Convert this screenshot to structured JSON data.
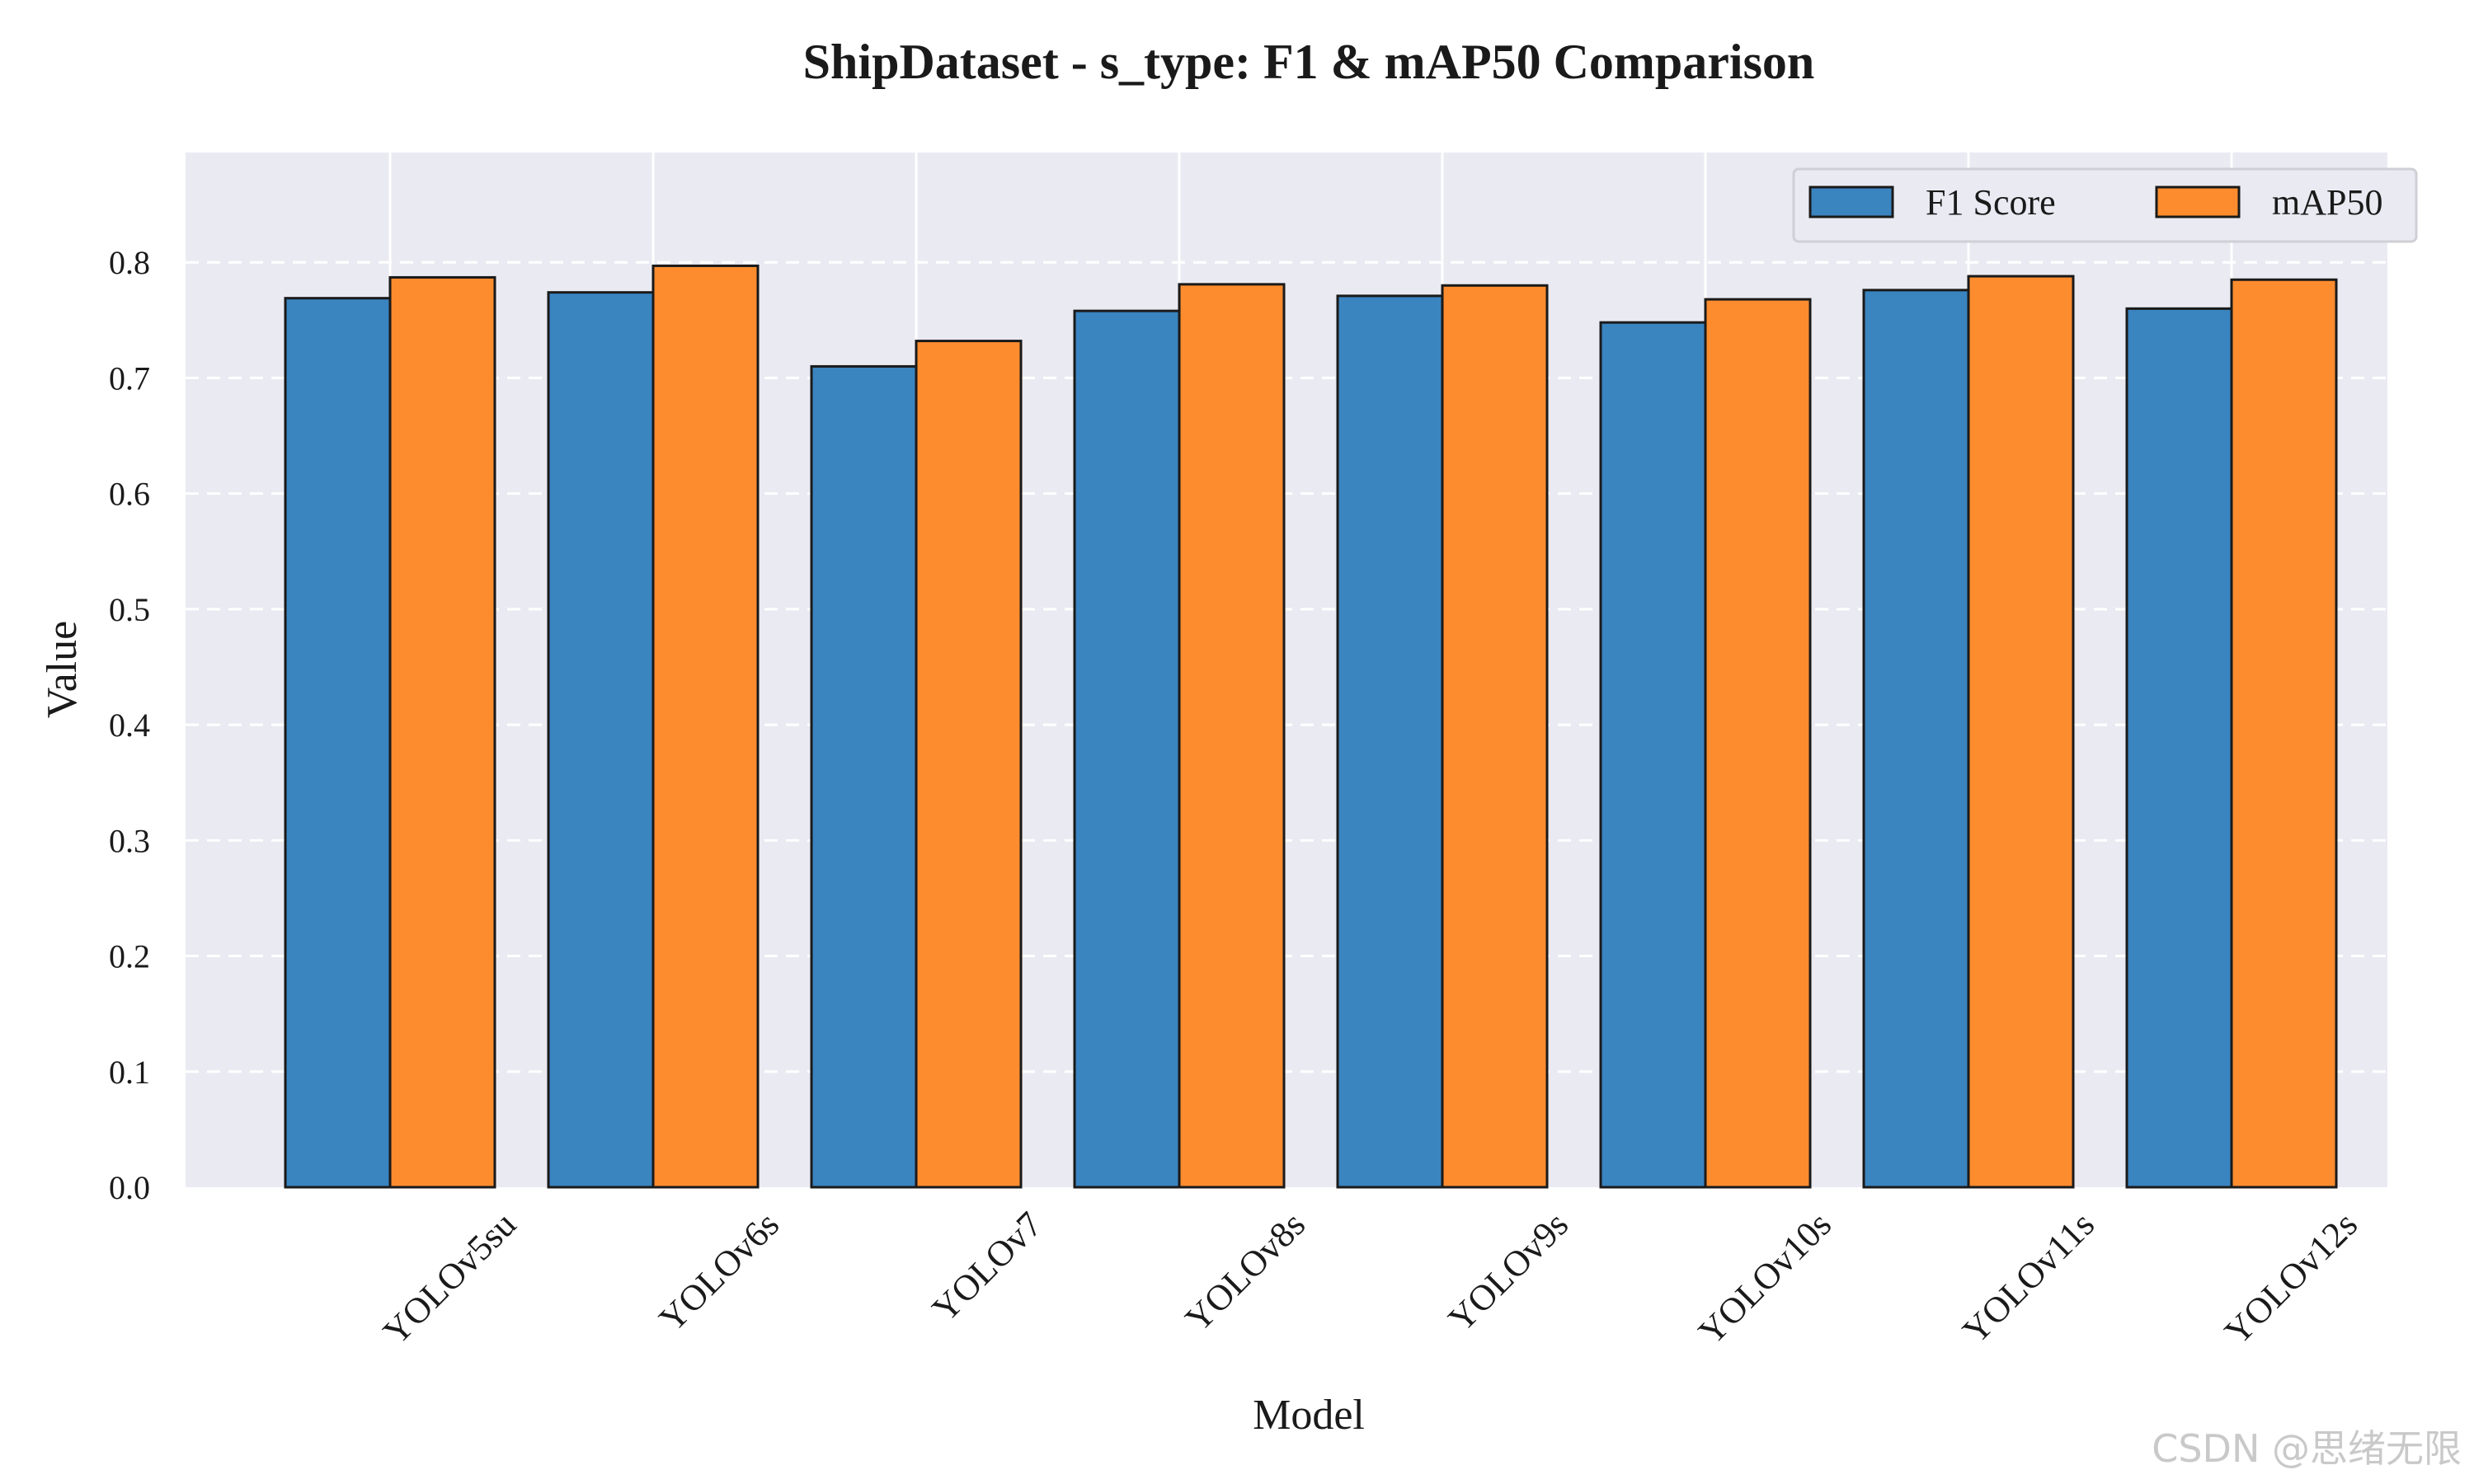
{
  "chart_data": {
    "type": "bar",
    "title": "ShipDataset - s_type: F1 & mAP50 Comparison",
    "xlabel": "Model",
    "ylabel": "Value",
    "ylim": [
      0,
      0.895
    ],
    "yticks": [
      "0.0",
      "0.1",
      "0.2",
      "0.3",
      "0.4",
      "0.5",
      "0.6",
      "0.7",
      "0.8"
    ],
    "categories": [
      "YOLOv5su",
      "YOLOv6s",
      "YOLOv7",
      "YOLOv8s",
      "YOLOv9s",
      "YOLOv10s",
      "YOLOv11s",
      "YOLOv12s"
    ],
    "series": [
      {
        "name": "F1 Score",
        "color": "#3a84c0",
        "values": [
          0.769,
          0.774,
          0.71,
          0.758,
          0.771,
          0.748,
          0.776,
          0.76
        ]
      },
      {
        "name": "mAP50",
        "color": "#fc8c2e",
        "values": [
          0.787,
          0.797,
          0.732,
          0.781,
          0.78,
          0.768,
          0.788,
          0.785
        ]
      }
    ],
    "legend_position": "top-right",
    "grid": true,
    "background": "#eaeaf2"
  },
  "watermark": "CSDN @思绪无限"
}
